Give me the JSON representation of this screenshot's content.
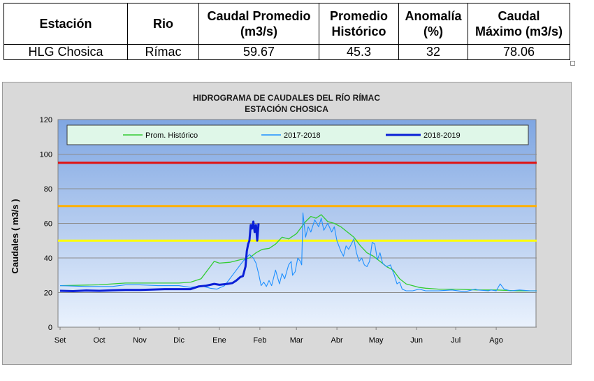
{
  "table": {
    "headers": [
      [
        "Estación"
      ],
      [
        "Rio"
      ],
      [
        "Caudal Promedio",
        "(m3/s)"
      ],
      [
        "Promedio",
        "Histórico"
      ],
      [
        "Anomalía",
        "(%)"
      ],
      [
        "Caudal",
        "Máximo (m3/s)"
      ]
    ],
    "row": [
      "HLG Chosica",
      "Rímac",
      "59.67",
      "45.3",
      "32",
      "78.06"
    ]
  },
  "chart_data": {
    "type": "line",
    "title": "HIDROGRAMA DE CAUDALES DEL RÍO RÍMAC",
    "subtitle": "ESTACIÓN CHOSICA",
    "ylabel": "Caudales ( m3/s )",
    "xlabel": "",
    "ylim": [
      0,
      120
    ],
    "yticks": [
      0,
      20,
      40,
      60,
      80,
      100,
      120
    ],
    "xlim": [
      0,
      365
    ],
    "categories": [
      "Set",
      "Oct",
      "Nov",
      "Dic",
      "Ene",
      "Feb",
      "Mar",
      "Abr",
      "May",
      "Jun",
      "Jul",
      "Ago"
    ],
    "category_positions": [
      0,
      30,
      61,
      91,
      122,
      153,
      181,
      212,
      242,
      273,
      303,
      334
    ],
    "grid": true,
    "legend_position": "top",
    "thresholds": [
      {
        "value": 95,
        "color": "#e01010"
      },
      {
        "value": 70,
        "color": "#ffb000"
      },
      {
        "value": 50,
        "color": "#ffff00"
      }
    ],
    "series": [
      {
        "name": "Prom. Histórico",
        "color": "#33cc33",
        "width": 1.3,
        "points": [
          [
            0,
            24
          ],
          [
            30,
            24.5
          ],
          [
            50,
            25.5
          ],
          [
            61,
            25.5
          ],
          [
            80,
            25.5
          ],
          [
            91,
            25.5
          ],
          [
            100,
            26
          ],
          [
            108,
            28
          ],
          [
            114,
            34
          ],
          [
            118,
            38
          ],
          [
            122,
            37
          ],
          [
            130,
            37.5
          ],
          [
            138,
            39
          ],
          [
            145,
            40
          ],
          [
            150,
            43
          ],
          [
            155,
            45
          ],
          [
            160,
            45.5
          ],
          [
            165,
            48
          ],
          [
            170,
            52
          ],
          [
            175,
            51
          ],
          [
            181,
            54
          ],
          [
            185,
            58
          ],
          [
            188,
            61
          ],
          [
            192,
            64
          ],
          [
            196,
            63
          ],
          [
            200,
            65
          ],
          [
            205,
            61
          ],
          [
            210,
            60
          ],
          [
            215,
            58
          ],
          [
            220,
            55
          ],
          [
            225,
            52
          ],
          [
            230,
            47
          ],
          [
            235,
            43
          ],
          [
            240,
            41
          ],
          [
            245,
            38
          ],
          [
            250,
            35
          ],
          [
            255,
            33
          ],
          [
            260,
            28
          ],
          [
            265,
            25
          ],
          [
            270,
            24
          ],
          [
            275,
            23
          ],
          [
            280,
            22.5
          ],
          [
            290,
            22
          ],
          [
            303,
            22
          ],
          [
            320,
            21.5
          ],
          [
            334,
            21.5
          ],
          [
            350,
            21
          ],
          [
            365,
            21
          ]
        ]
      },
      {
        "name": "2017-2018",
        "color": "#1e90ff",
        "width": 1.1,
        "points": [
          [
            0,
            24
          ],
          [
            20,
            23.5
          ],
          [
            40,
            23.5
          ],
          [
            50,
            24.5
          ],
          [
            61,
            24.5
          ],
          [
            75,
            24
          ],
          [
            91,
            24
          ],
          [
            100,
            23
          ],
          [
            105,
            23.5
          ],
          [
            110,
            23.5
          ],
          [
            115,
            22.5
          ],
          [
            120,
            22
          ],
          [
            123,
            23
          ],
          [
            126,
            24
          ],
          [
            130,
            28
          ],
          [
            135,
            33
          ],
          [
            140,
            38
          ],
          [
            145,
            42
          ],
          [
            148,
            40
          ],
          [
            150,
            37
          ],
          [
            152,
            31
          ],
          [
            154,
            24
          ],
          [
            156,
            26
          ],
          [
            158,
            23.5
          ],
          [
            160,
            27
          ],
          [
            162,
            24
          ],
          [
            165,
            33
          ],
          [
            168,
            25
          ],
          [
            170,
            31
          ],
          [
            172,
            28
          ],
          [
            175,
            36
          ],
          [
            177,
            38
          ],
          [
            178,
            30
          ],
          [
            180,
            32
          ],
          [
            182,
            40
          ],
          [
            184,
            38
          ],
          [
            185,
            36
          ],
          [
            186,
            66
          ],
          [
            188,
            52
          ],
          [
            190,
            58
          ],
          [
            192,
            55
          ],
          [
            195,
            62
          ],
          [
            198,
            58
          ],
          [
            200,
            63
          ],
          [
            202,
            56
          ],
          [
            205,
            60
          ],
          [
            208,
            55
          ],
          [
            210,
            58
          ],
          [
            212,
            50
          ],
          [
            215,
            44
          ],
          [
            217,
            41
          ],
          [
            219,
            47
          ],
          [
            221,
            45
          ],
          [
            223,
            48
          ],
          [
            225,
            51
          ],
          [
            227,
            43
          ],
          [
            229,
            38
          ],
          [
            231,
            40
          ],
          [
            233,
            36
          ],
          [
            235,
            35
          ],
          [
            237,
            38
          ],
          [
            239,
            49
          ],
          [
            241,
            48
          ],
          [
            243,
            39
          ],
          [
            245,
            43
          ],
          [
            247,
            37
          ],
          [
            250,
            35
          ],
          [
            253,
            36
          ],
          [
            256,
            30
          ],
          [
            258,
            25
          ],
          [
            260,
            26
          ],
          [
            262,
            22
          ],
          [
            265,
            21
          ],
          [
            270,
            21
          ],
          [
            275,
            22
          ],
          [
            280,
            21
          ],
          [
            290,
            21
          ],
          [
            300,
            21.5
          ],
          [
            310,
            20.5
          ],
          [
            318,
            22
          ],
          [
            320,
            21.5
          ],
          [
            328,
            21
          ],
          [
            330,
            21.5
          ],
          [
            334,
            21
          ],
          [
            337,
            25
          ],
          [
            340,
            22
          ],
          [
            345,
            21
          ],
          [
            352,
            21.5
          ],
          [
            360,
            21
          ],
          [
            365,
            21
          ]
        ]
      },
      {
        "name": "2018-2019",
        "color": "#0a1fd6",
        "width": 3,
        "points": [
          [
            0,
            21
          ],
          [
            10,
            20.8
          ],
          [
            20,
            21.2
          ],
          [
            30,
            21
          ],
          [
            40,
            21.3
          ],
          [
            50,
            21.5
          ],
          [
            61,
            21.5
          ],
          [
            70,
            21.7
          ],
          [
            80,
            22
          ],
          [
            91,
            22
          ],
          [
            100,
            22
          ],
          [
            106,
            23.5
          ],
          [
            112,
            24
          ],
          [
            118,
            25
          ],
          [
            122,
            24.5
          ],
          [
            128,
            25
          ],
          [
            132,
            25.5
          ],
          [
            135,
            27
          ],
          [
            138,
            29
          ],
          [
            140,
            29.5
          ],
          [
            142,
            35
          ],
          [
            143,
            44
          ],
          [
            144,
            48
          ],
          [
            145,
            50
          ],
          [
            146,
            59
          ],
          [
            147,
            57
          ],
          [
            148,
            61
          ],
          [
            149,
            55
          ],
          [
            150,
            59
          ],
          [
            151,
            50
          ],
          [
            152,
            60
          ]
        ]
      }
    ]
  }
}
